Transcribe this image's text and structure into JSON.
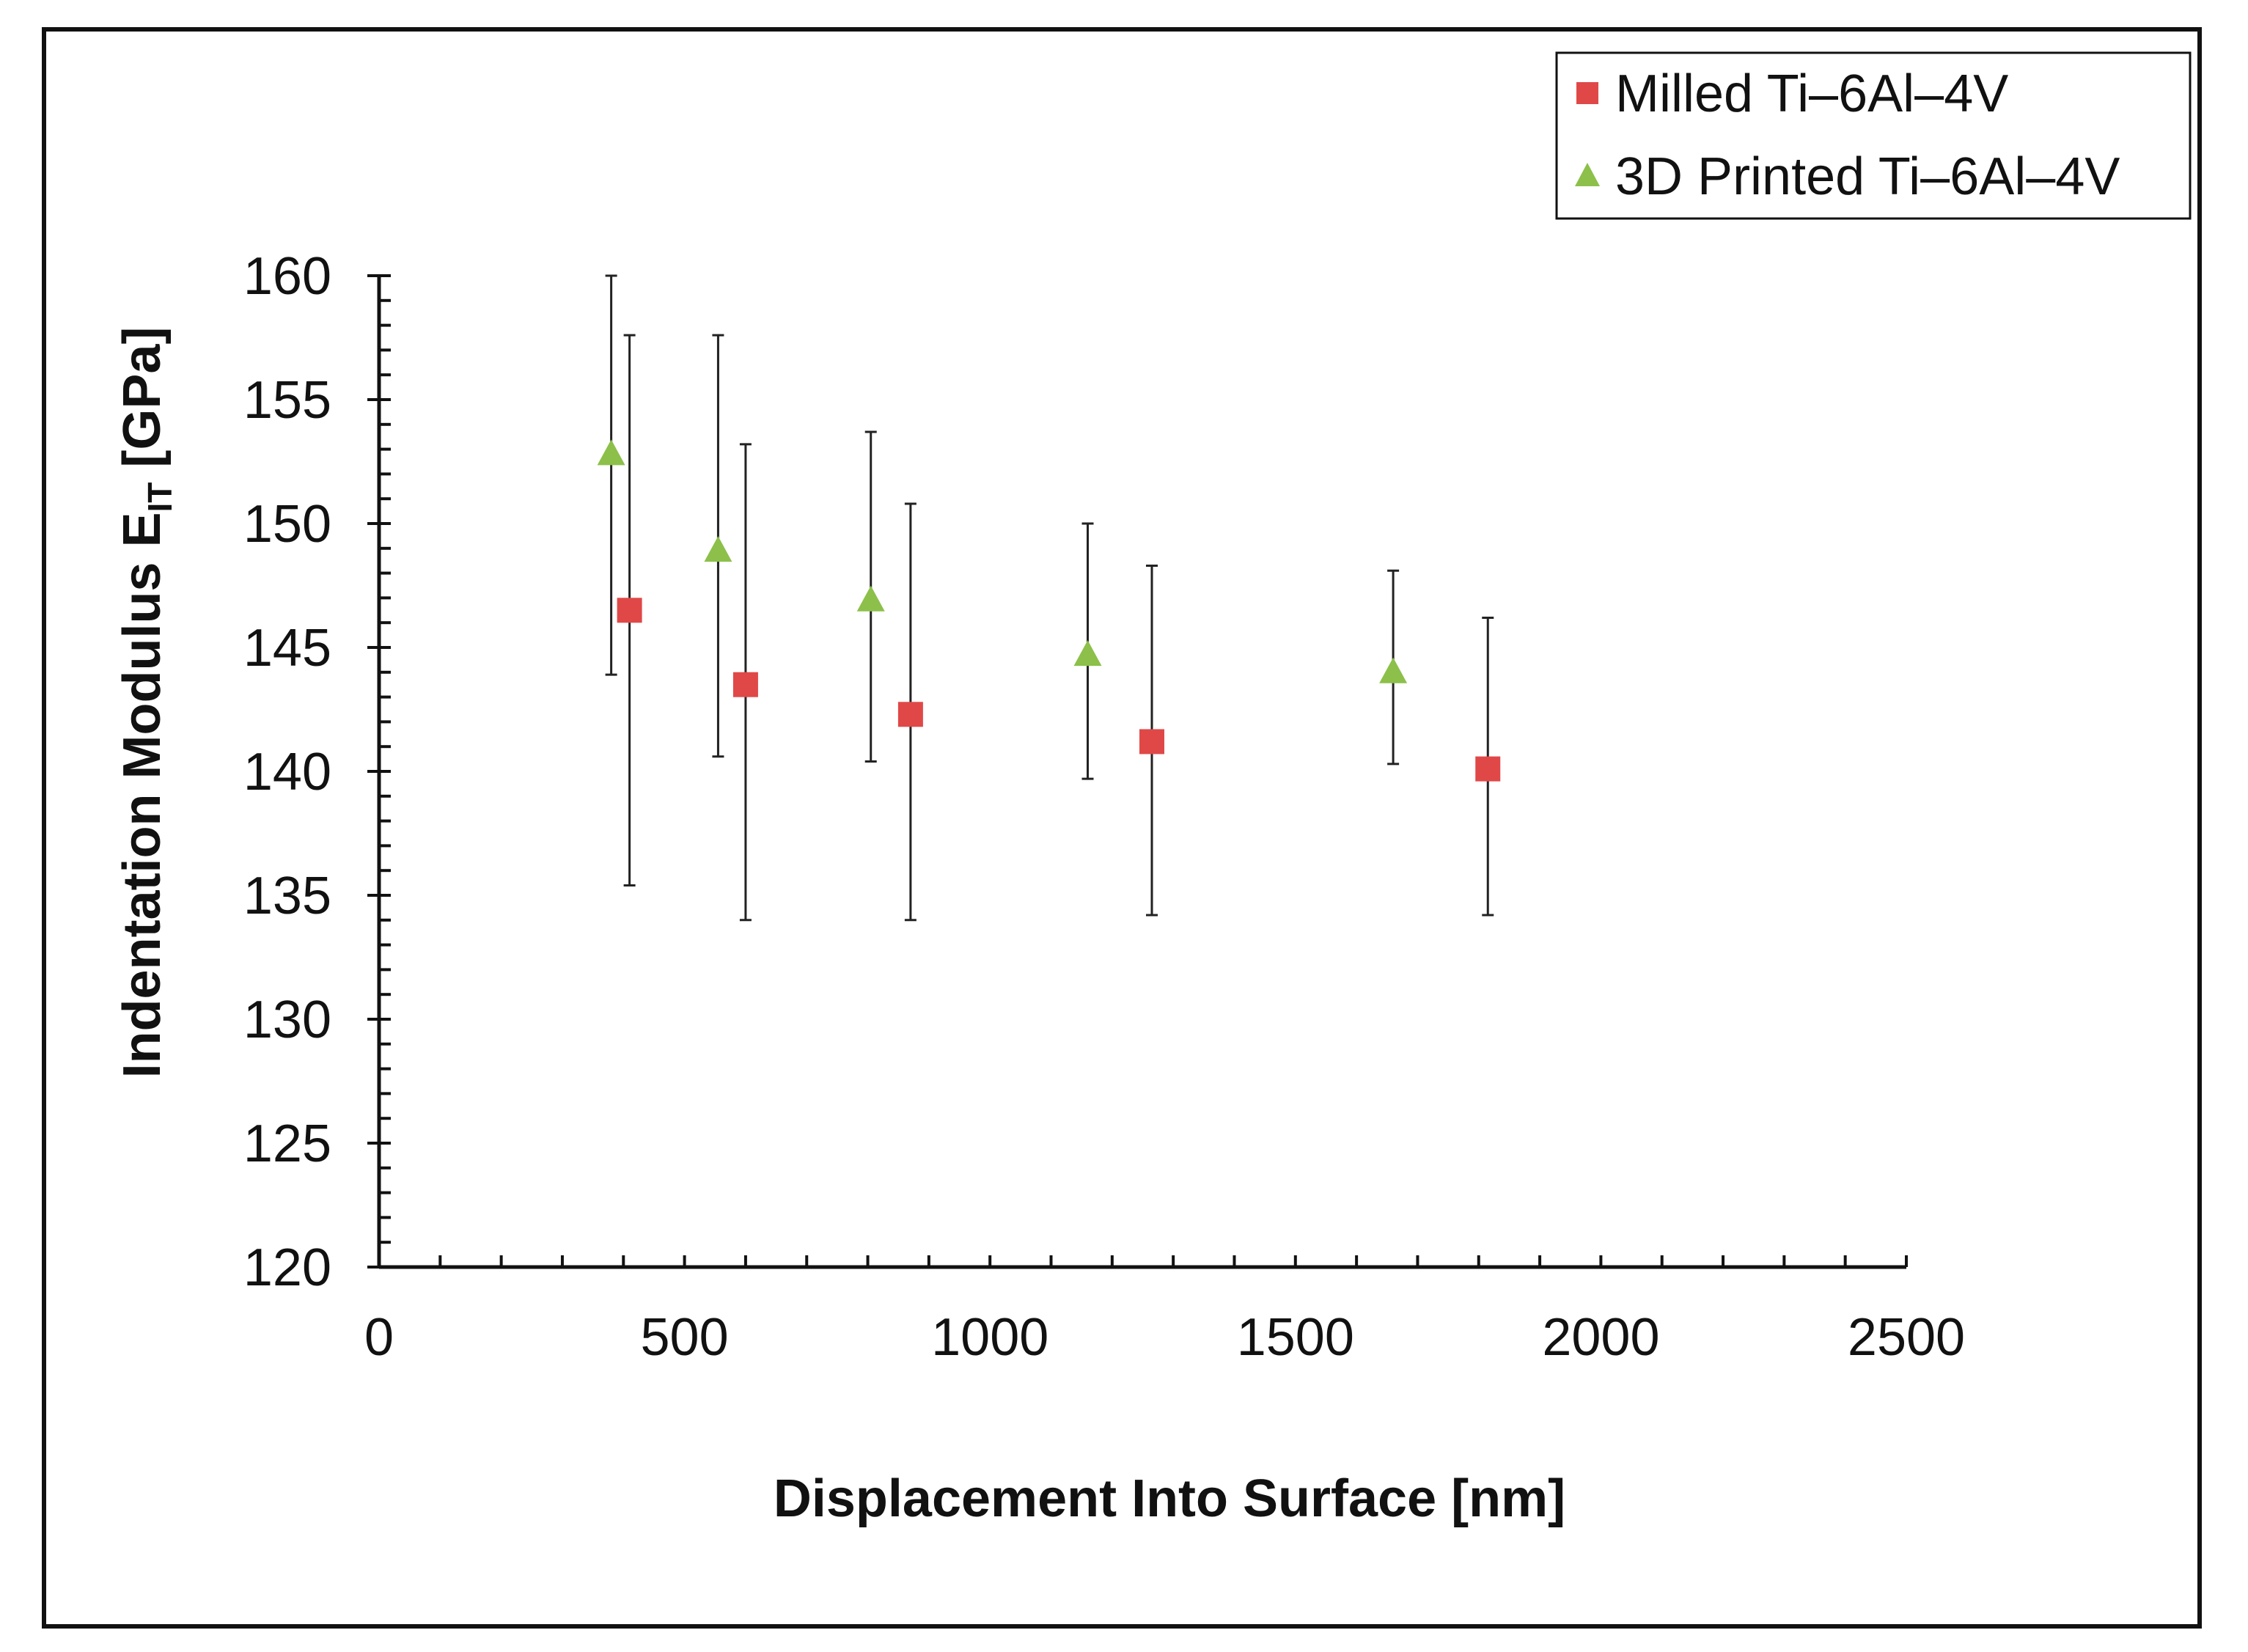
{
  "chart_data": {
    "type": "scatter",
    "title": "",
    "xlabel": "Displacement Into Surface [nm]",
    "ylabel": {
      "main": "Indentation Modulus E",
      "subscript": "IT",
      "unit": " [GPa]"
    },
    "xlim": [
      0,
      2500
    ],
    "ylim": [
      120,
      160
    ],
    "x_ticks": [
      0,
      500,
      1000,
      1500,
      2000,
      2500
    ],
    "y_ticks": [
      120,
      125,
      130,
      135,
      140,
      145,
      150,
      155,
      160
    ],
    "x_minor_step": 100,
    "y_minor_step": 1,
    "grid": false,
    "legend_position": "top-right",
    "series": [
      {
        "name": "Milled Ti–6Al–4V",
        "marker": "square",
        "color": "#e04848",
        "points": [
          {
            "x": 410,
            "y": 146.5,
            "err_low": 135.4,
            "err_high": 157.6
          },
          {
            "x": 600,
            "y": 143.5,
            "err_low": 134.0,
            "err_high": 153.2
          },
          {
            "x": 870,
            "y": 142.3,
            "err_low": 134.0,
            "err_high": 150.8
          },
          {
            "x": 1265,
            "y": 141.2,
            "err_low": 134.2,
            "err_high": 148.3
          },
          {
            "x": 1815,
            "y": 140.1,
            "err_low": 134.2,
            "err_high": 146.2
          }
        ]
      },
      {
        "name": "3D Printed Ti–6Al–4V",
        "marker": "triangle",
        "color": "#8cc04a",
        "points": [
          {
            "x": 380,
            "y": 152.8,
            "err_low": 143.9,
            "err_high": 160.0
          },
          {
            "x": 555,
            "y": 148.9,
            "err_low": 140.6,
            "err_high": 157.6
          },
          {
            "x": 805,
            "y": 146.9,
            "err_low": 140.4,
            "err_high": 153.7
          },
          {
            "x": 1160,
            "y": 144.7,
            "err_low": 139.7,
            "err_high": 150.0
          },
          {
            "x": 1660,
            "y": 144.0,
            "err_low": 140.3,
            "err_high": 148.1
          }
        ]
      }
    ]
  }
}
